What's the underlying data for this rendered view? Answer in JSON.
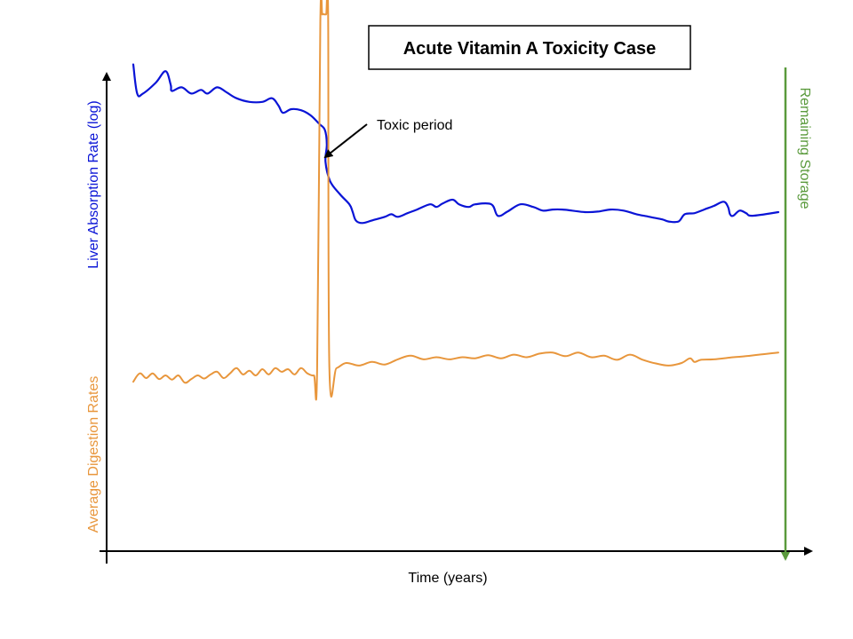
{
  "colors": {
    "absorption": "#0a14d6",
    "digestion": "#e8963c",
    "storage": "#5a9a3c",
    "axis": "#000000"
  },
  "chart_data": {
    "type": "line",
    "title": "Acute Vitamin A Toxicity Case",
    "xlabel": "Time (years)",
    "ylabel_left_top": "Liver Absorption Rate (log)",
    "ylabel_left_bottom": "Average Digestion Rates",
    "ylabel_right": "Remaining Storage",
    "annotation": "Toxic period",
    "axis_ticks": "none",
    "grid": false,
    "x_range": [
      0,
      100
    ],
    "y_range": [
      0,
      100
    ],
    "series": [
      {
        "key": "absorption",
        "color": "#0a14d6",
        "points": [
          [
            0,
            90
          ],
          [
            0.6,
            84.4
          ],
          [
            1.5,
            84.4
          ],
          [
            3.5,
            86.5
          ],
          [
            5,
            88.7
          ],
          [
            5.8,
            86.1
          ],
          [
            6,
            84.9
          ],
          [
            7.5,
            85.6
          ],
          [
            9,
            84.4
          ],
          [
            10.5,
            85.1
          ],
          [
            11.5,
            84.4
          ],
          [
            13,
            85.6
          ],
          [
            14.5,
            84.6
          ],
          [
            16,
            83.5
          ],
          [
            18,
            82.8
          ],
          [
            20,
            82.8
          ],
          [
            21.5,
            83.5
          ],
          [
            22.5,
            82.1
          ],
          [
            23.2,
            80.7
          ],
          [
            24.5,
            81.4
          ],
          [
            26,
            81.2
          ],
          [
            27.5,
            80.2
          ],
          [
            28.8,
            78.6
          ],
          [
            29.7,
            77.4
          ],
          [
            30,
            74.6
          ],
          [
            29.8,
            71.3
          ],
          [
            30.5,
            67.6
          ],
          [
            32,
            65.1
          ],
          [
            33.5,
            63.1
          ],
          [
            34,
            61.7
          ],
          [
            34.5,
            60
          ],
          [
            35.5,
            59.5
          ],
          [
            37,
            60
          ],
          [
            39,
            60.7
          ],
          [
            40,
            61.2
          ],
          [
            41,
            60.7
          ],
          [
            42.5,
            61.4
          ],
          [
            44,
            62.1
          ],
          [
            46,
            63.1
          ],
          [
            47,
            62.6
          ],
          [
            48,
            63.3
          ],
          [
            49.5,
            64
          ],
          [
            50.5,
            63.1
          ],
          [
            52,
            62.6
          ],
          [
            53,
            63.1
          ],
          [
            55.5,
            63.1
          ],
          [
            56.5,
            60.9
          ],
          [
            58,
            61.7
          ],
          [
            60,
            63.1
          ],
          [
            62,
            62.6
          ],
          [
            63.5,
            61.9
          ],
          [
            65,
            62.1
          ],
          [
            66.5,
            62.1
          ],
          [
            68,
            61.9
          ],
          [
            70,
            61.6
          ],
          [
            72,
            61.7
          ],
          [
            74,
            62.1
          ],
          [
            76,
            61.9
          ],
          [
            78,
            61.2
          ],
          [
            80,
            60.7
          ],
          [
            82,
            60.2
          ],
          [
            83,
            59.8
          ],
          [
            84.5,
            59.8
          ],
          [
            85.5,
            61.2
          ],
          [
            87,
            61.4
          ],
          [
            88.5,
            62.1
          ],
          [
            90,
            62.8
          ],
          [
            91.5,
            63.6
          ],
          [
            92.2,
            62.6
          ],
          [
            92.5,
            61.2
          ],
          [
            93,
            60.9
          ],
          [
            94,
            61.9
          ],
          [
            95,
            61.4
          ],
          [
            96,
            60.9
          ],
          [
            100,
            61.6
          ]
        ]
      },
      {
        "key": "digestion",
        "color": "#e8963c",
        "points": [
          [
            0,
            29
          ],
          [
            1,
            30.6
          ],
          [
            2,
            29.7
          ],
          [
            3,
            30.6
          ],
          [
            4,
            29.5
          ],
          [
            5,
            30.2
          ],
          [
            6,
            29.4
          ],
          [
            7,
            30.2
          ],
          [
            8,
            28.8
          ],
          [
            9,
            29.5
          ],
          [
            10,
            30.2
          ],
          [
            11,
            29.6
          ],
          [
            12,
            30.4
          ],
          [
            13,
            30.9
          ],
          [
            14,
            29.7
          ],
          [
            15,
            30.6
          ],
          [
            16,
            31.6
          ],
          [
            17,
            30.4
          ],
          [
            18,
            31.1
          ],
          [
            19,
            30.2
          ],
          [
            20,
            31.4
          ],
          [
            21,
            30.4
          ],
          [
            22,
            31.6
          ],
          [
            23,
            30.9
          ],
          [
            24,
            31.4
          ],
          [
            25,
            30.4
          ],
          [
            26,
            31.6
          ],
          [
            27,
            30.6
          ],
          [
            28,
            30.2
          ],
          [
            28.5,
            31.2
          ],
          [
            29,
            98
          ],
          [
            29.3,
            99.6
          ],
          [
            29.6,
            99.6
          ],
          [
            29.9,
            99.6
          ],
          [
            30.2,
            99.6
          ],
          [
            30.4,
            31.6
          ],
          [
            31.5,
            31.6
          ],
          [
            33,
            32.6
          ],
          [
            35,
            32.1
          ],
          [
            37,
            32.8
          ],
          [
            39,
            32.3
          ],
          [
            41,
            33.3
          ],
          [
            43,
            34
          ],
          [
            45,
            33.3
          ],
          [
            47,
            33.7
          ],
          [
            49,
            33.3
          ],
          [
            51,
            33.7
          ],
          [
            53,
            33.5
          ],
          [
            55,
            34.1
          ],
          [
            57,
            33.5
          ],
          [
            59,
            34.2
          ],
          [
            61,
            33.7
          ],
          [
            63,
            34.4
          ],
          [
            65,
            34.6
          ],
          [
            67,
            33.9
          ],
          [
            69,
            34.6
          ],
          [
            71,
            33.7
          ],
          [
            73,
            34
          ],
          [
            75,
            33.2
          ],
          [
            77,
            34.2
          ],
          [
            79,
            33.2
          ],
          [
            81,
            32.5
          ],
          [
            83,
            32.1
          ],
          [
            85,
            32.6
          ],
          [
            86.3,
            33.5
          ],
          [
            87,
            32.8
          ],
          [
            88,
            33.2
          ],
          [
            90,
            33.3
          ],
          [
            93,
            33.7
          ],
          [
            95,
            33.9
          ],
          [
            97,
            34.2
          ],
          [
            100,
            34.6
          ]
        ]
      }
    ]
  }
}
